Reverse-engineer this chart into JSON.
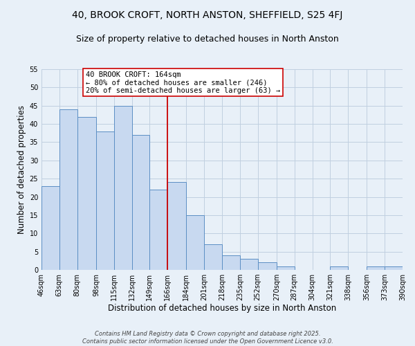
{
  "title": "40, BROOK CROFT, NORTH ANSTON, SHEFFIELD, S25 4FJ",
  "subtitle": "Size of property relative to detached houses in North Anston",
  "xlabel": "Distribution of detached houses by size in North Anston",
  "ylabel": "Number of detached properties",
  "footer_lines": [
    "Contains HM Land Registry data © Crown copyright and database right 2025.",
    "Contains public sector information licensed under the Open Government Licence v3.0."
  ],
  "bin_edges": [
    46,
    63,
    80,
    98,
    115,
    132,
    149,
    166,
    184,
    201,
    218,
    235,
    252,
    270,
    287,
    304,
    321,
    338,
    356,
    373,
    390
  ],
  "bar_heights": [
    23,
    44,
    42,
    38,
    45,
    37,
    22,
    24,
    15,
    7,
    4,
    3,
    2,
    1,
    0,
    0,
    1,
    0,
    1,
    1
  ],
  "bar_color": "#c8d9f0",
  "bar_edge_color": "#5b8ec4",
  "reference_line_x": 166,
  "reference_line_color": "#cc0000",
  "annotation_text": "40 BROOK CROFT: 164sqm\n← 80% of detached houses are smaller (246)\n20% of semi-detached houses are larger (63) →",
  "annotation_box_color": "#ffffff",
  "annotation_box_edge_color": "#cc0000",
  "ylim": [
    0,
    55
  ],
  "yticks": [
    0,
    5,
    10,
    15,
    20,
    25,
    30,
    35,
    40,
    45,
    50,
    55
  ],
  "grid_color": "#c0cfe0",
  "background_color": "#e8f0f8",
  "title_fontsize": 10,
  "subtitle_fontsize": 9,
  "axis_label_fontsize": 8.5,
  "tick_fontsize": 7,
  "annotation_fontsize": 7.5,
  "footer_fontsize": 6,
  "footer_color": "#444444"
}
